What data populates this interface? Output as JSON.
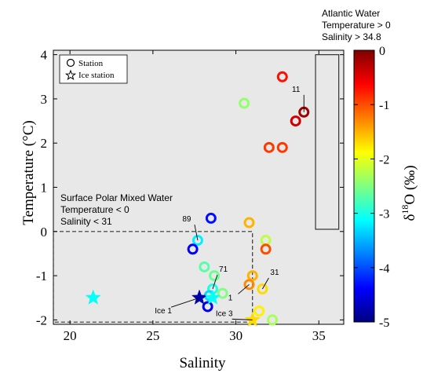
{
  "chart_data": {
    "type": "scatter",
    "xlabel": "Salinity",
    "ylabel": "Temperature (°C)",
    "xlim": [
      19,
      36.5
    ],
    "ylim": [
      -2.1,
      4.1
    ],
    "xticks": [
      "20",
      "25",
      "30",
      "35"
    ],
    "yticks": [
      "-2",
      "-1",
      "0",
      "1",
      "2",
      "3",
      "4"
    ],
    "grid": false,
    "background": "#e8e8e8",
    "legend": {
      "placement": "top-left",
      "entries": [
        "Station",
        "Ice station"
      ]
    },
    "colorbar": {
      "label_prefix": "δ",
      "label_sup": "18",
      "label_rest": "O (‰)",
      "range": [
        -5,
        0
      ],
      "ticks": [
        "0",
        "-1",
        "-2",
        "-3",
        "-4",
        "-5"
      ],
      "colormap": "jet",
      "stops": [
        "#00007f",
        "#0000ff",
        "#0080ff",
        "#00ffff",
        "#80ff80",
        "#ffff00",
        "#ff8000",
        "#ff0000",
        "#7f0000"
      ]
    },
    "regions": [
      {
        "name": "Atlantic Water",
        "lines": [
          "Atlantic Water",
          "Temperature > 0",
          "Salinity > 34.8"
        ],
        "x": [
          34.8,
          36.2
        ],
        "y": [
          0.05,
          4.0
        ],
        "style": "solid"
      },
      {
        "name": "Surface Polar Mixed Water",
        "lines": [
          "Surface Polar Mixed Water",
          "Temperature < 0",
          "Salinity < 31"
        ],
        "x": [
          19,
          31
        ],
        "y": [
          -2.05,
          0
        ],
        "style": "dashed"
      }
    ],
    "series": [
      {
        "name": "Station",
        "marker": "circle",
        "points": [
          {
            "x": 32.8,
            "y": 3.5,
            "d18O": -0.7
          },
          {
            "x": 30.5,
            "y": 2.9,
            "d18O": -2.4
          },
          {
            "x": 34.1,
            "y": 2.7,
            "d18O": -0.15,
            "label": "11"
          },
          {
            "x": 33.6,
            "y": 2.5,
            "d18O": -0.4
          },
          {
            "x": 32.0,
            "y": 1.9,
            "d18O": -0.9
          },
          {
            "x": 32.8,
            "y": 1.9,
            "d18O": -0.9
          },
          {
            "x": 28.5,
            "y": 0.3,
            "d18O": -4.3
          },
          {
            "x": 30.8,
            "y": 0.2,
            "d18O": -1.5
          },
          {
            "x": 27.7,
            "y": -0.2,
            "d18O": -3.2,
            "label": "89"
          },
          {
            "x": 31.8,
            "y": -0.2,
            "d18O": -2.2
          },
          {
            "x": 27.4,
            "y": -0.4,
            "d18O": -4.4
          },
          {
            "x": 31.8,
            "y": -0.4,
            "d18O": -1.0
          },
          {
            "x": 28.7,
            "y": -1.0,
            "d18O": -2.6
          },
          {
            "x": 28.1,
            "y": -0.8,
            "d18O": -2.7
          },
          {
            "x": 31.0,
            "y": -1.0,
            "d18O": -1.5
          },
          {
            "x": 30.8,
            "y": -1.2,
            "d18O": -1.3,
            "label": "1"
          },
          {
            "x": 28.6,
            "y": -1.3,
            "d18O": -3.0,
            "label": "71"
          },
          {
            "x": 28.4,
            "y": -1.45,
            "d18O": -3.3
          },
          {
            "x": 29.2,
            "y": -1.4,
            "d18O": -2.5
          },
          {
            "x": 31.6,
            "y": -1.3,
            "d18O": -1.7,
            "label": "31"
          },
          {
            "x": 28.3,
            "y": -1.7,
            "d18O": -4.5
          },
          {
            "x": 31.4,
            "y": -1.8,
            "d18O": -1.8
          },
          {
            "x": 32.2,
            "y": -2.0,
            "d18O": -2.3
          }
        ]
      },
      {
        "name": "Ice station",
        "marker": "star",
        "points": [
          {
            "x": 21.4,
            "y": -1.5,
            "d18O": -3.1
          },
          {
            "x": 27.8,
            "y": -1.5,
            "d18O": -4.75,
            "label": "Ice 1"
          },
          {
            "x": 28.6,
            "y": -1.5,
            "d18O": -3.1
          },
          {
            "x": 31.0,
            "y": -2.0,
            "d18O": -1.7,
            "label": "Ice 3"
          }
        ]
      }
    ]
  }
}
